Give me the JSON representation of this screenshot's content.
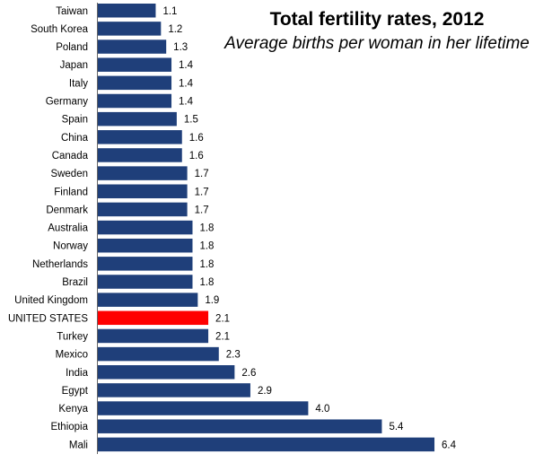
{
  "chart_data": {
    "type": "bar",
    "orientation": "horizontal",
    "title": "Total fertility rates, 2012",
    "subtitle": "Average births per woman in her lifetime",
    "xlim": [
      0,
      6.4
    ],
    "grid": false,
    "legend": "none",
    "colors": {
      "default": "#1f3f7a",
      "highlight": "#ff0000"
    },
    "categories": [
      "Taiwan",
      "South Korea",
      "Poland",
      "Japan",
      "Italy",
      "Germany",
      "Spain",
      "China",
      "Canada",
      "Sweden",
      "Finland",
      "Denmark",
      "Australia",
      "Norway",
      "Netherlands",
      "Brazil",
      "United Kingdom",
      "UNITED STATES",
      "Turkey",
      "Mexico",
      "India",
      "Egypt",
      "Kenya",
      "Ethiopia",
      "Mali"
    ],
    "values": [
      1.1,
      1.2,
      1.3,
      1.4,
      1.4,
      1.4,
      1.5,
      1.6,
      1.6,
      1.7,
      1.7,
      1.7,
      1.8,
      1.8,
      1.8,
      1.8,
      1.9,
      2.1,
      2.1,
      2.3,
      2.6,
      2.9,
      4.0,
      5.4,
      6.4
    ],
    "value_labels": [
      "1.1",
      "1.2",
      "1.3",
      "1.4",
      "1.4",
      "1.4",
      "1.5",
      "1.6",
      "1.6",
      "1.7",
      "1.7",
      "1.7",
      "1.8",
      "1.8",
      "1.8",
      "1.8",
      "1.9",
      "2.1",
      "2.1",
      "2.3",
      "2.6",
      "2.9",
      "4.0",
      "5.4",
      "6.4"
    ],
    "highlight": "UNITED STATES"
  }
}
